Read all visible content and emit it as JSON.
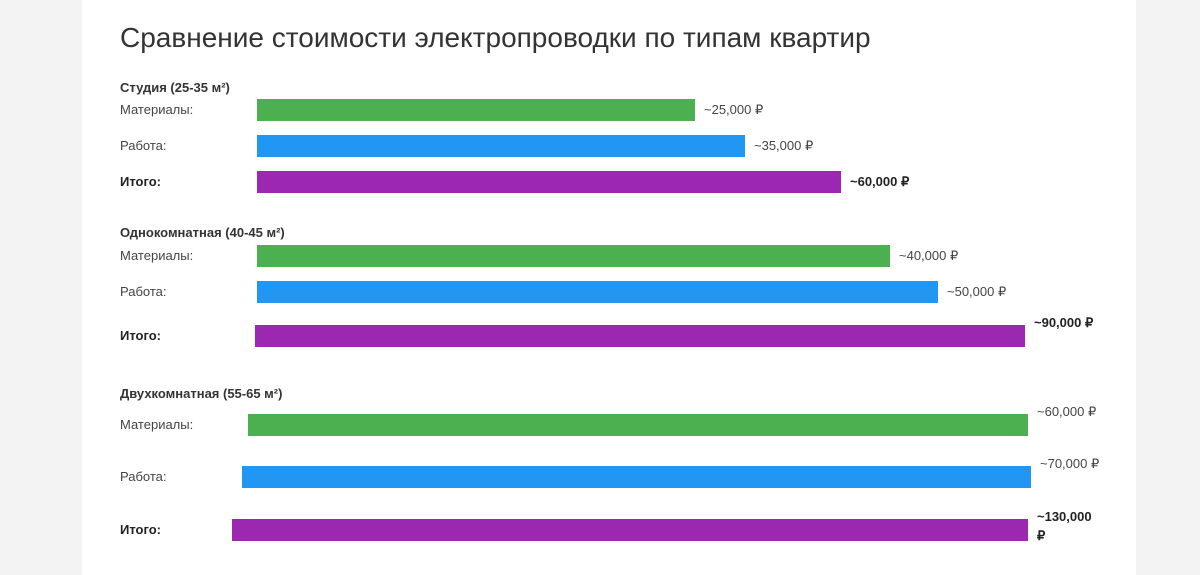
{
  "chart_data": {
    "type": "bar",
    "title": "Сравнение стоимости электропроводки по типам квартир",
    "currency": "₽",
    "groups": [
      {
        "title": "Студия (25-35 м²)",
        "rows": [
          {
            "label": "Материалы:",
            "value": 25000,
            "display": "~25,000 ₽",
            "kind": "materials"
          },
          {
            "label": "Работа:",
            "value": 35000,
            "display": "~35,000 ₽",
            "kind": "work"
          },
          {
            "label": "Итого:",
            "value": 60000,
            "display": "~60,000 ₽",
            "kind": "total"
          }
        ]
      },
      {
        "title": "Однокомнатная (40-45 м²)",
        "rows": [
          {
            "label": "Материалы:",
            "value": 40000,
            "display": "~40,000 ₽",
            "kind": "materials"
          },
          {
            "label": "Работа:",
            "value": 50000,
            "display": "~50,000 ₽",
            "kind": "work"
          },
          {
            "label": "Итого:",
            "value": 90000,
            "display": "~90,000 ₽",
            "kind": "total"
          }
        ]
      },
      {
        "title": "Двухкомнатная (55-65 м²)",
        "rows": [
          {
            "label": "Материалы:",
            "value": 60000,
            "display": "~60,000 ₽",
            "kind": "materials"
          },
          {
            "label": "Работа:",
            "value": 70000,
            "display": "~70,000 ₽",
            "kind": "work"
          },
          {
            "label": "Итого:",
            "value": 130000,
            "display": "~130,000 ₽",
            "kind": "total"
          }
        ]
      }
    ],
    "colors": {
      "materials": "#4caf50",
      "work": "#2196f3",
      "total": "#9c27b0"
    }
  }
}
